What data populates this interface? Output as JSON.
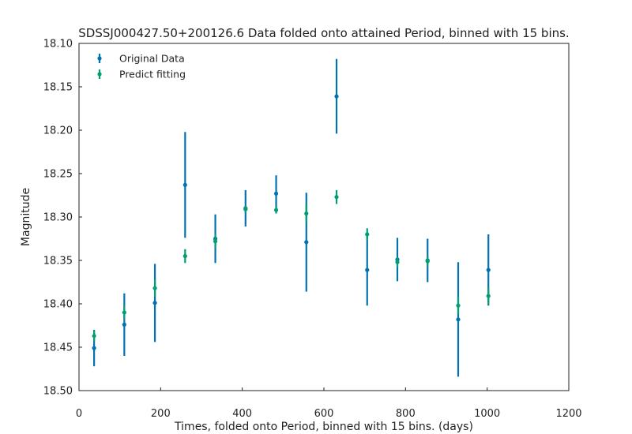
{
  "chart_data": {
    "type": "scatter",
    "title": "SDSSJ000427.50+200126.6 Data folded onto attained Period, binned with 15 bins.",
    "xlabel": "Times, folded onto Period, binned with 15 bins. (days)",
    "ylabel": "Magnitude",
    "xlim": [
      0,
      1200
    ],
    "ylim": [
      18.5,
      18.1
    ],
    "y_inverted": true,
    "xticks": [
      "0",
      "200",
      "400",
      "600",
      "800",
      "1000",
      "1200"
    ],
    "yticks": [
      "18.10",
      "18.15",
      "18.20",
      "18.25",
      "18.30",
      "18.35",
      "18.40",
      "18.45",
      "18.50"
    ],
    "legend_position": "top-left",
    "series": [
      {
        "name": "Original Data",
        "color": "#0072b2",
        "x": [
          37,
          111,
          186,
          260,
          334,
          408,
          483,
          557,
          631,
          706,
          780,
          854,
          929,
          1003
        ],
        "y": [
          18.451,
          18.424,
          18.399,
          18.263,
          18.325,
          18.29,
          18.273,
          18.329,
          18.161,
          18.361,
          18.349,
          18.35,
          18.418,
          18.361
        ],
        "yerr": [
          0.021,
          0.036,
          0.045,
          0.061,
          0.028,
          0.021,
          0.021,
          0.057,
          0.043,
          0.041,
          0.025,
          0.025,
          0.066,
          0.041
        ]
      },
      {
        "name": "Predict fitting",
        "color": "#009e73",
        "x": [
          37,
          111,
          186,
          260,
          334,
          408,
          483,
          557,
          631,
          706,
          780,
          854,
          929,
          1003
        ],
        "y": [
          18.437,
          18.41,
          18.382,
          18.345,
          18.328,
          18.291,
          18.292,
          18.296,
          18.277,
          18.32,
          18.352,
          18.351,
          18.402,
          18.391
        ],
        "yerr": [
          0.006,
          0.008,
          0.01,
          0.008,
          0.008,
          0.004,
          0.004,
          0.01,
          0.008,
          0.007,
          0.006,
          0.006,
          0.01,
          0.01
        ]
      }
    ]
  }
}
